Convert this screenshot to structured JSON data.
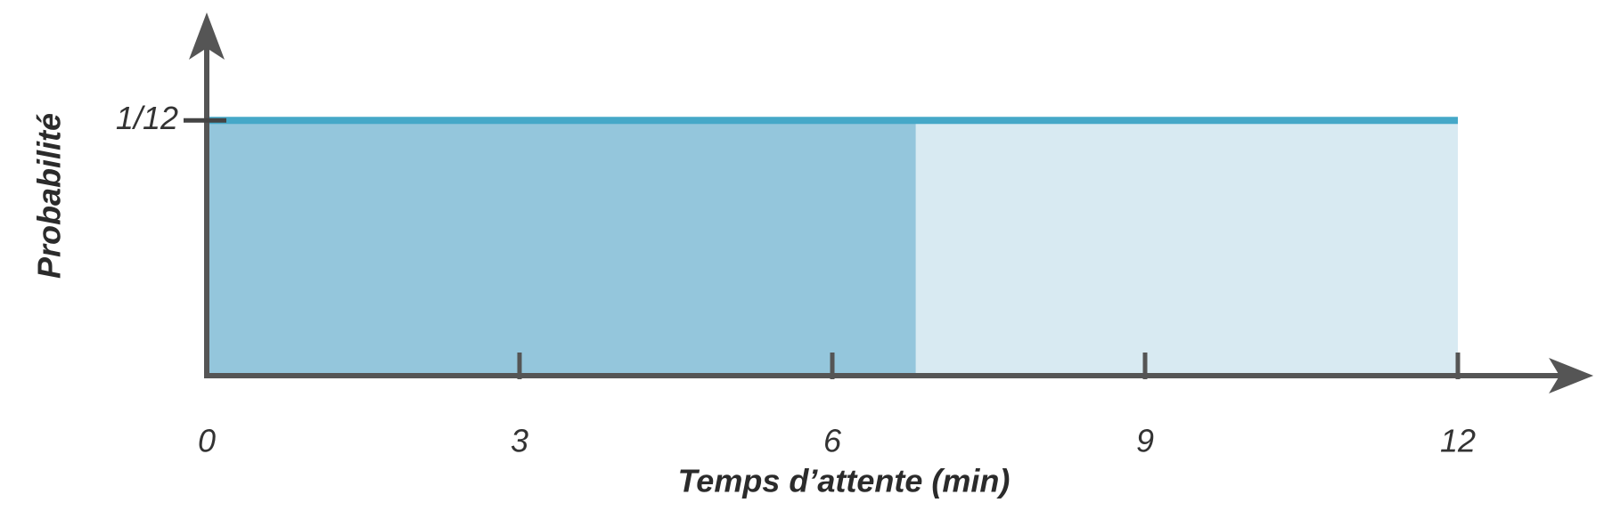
{
  "chart_data": {
    "type": "area",
    "x_label": "Temps d’attente (min)",
    "y_label": "Probabilité",
    "x": [
      0,
      12
    ],
    "values": [
      0.0833,
      0.0833
    ],
    "line_color": "#45a8c8",
    "fill_color": "#d8eaf2",
    "highlight": {
      "x": [
        0,
        6.8
      ],
      "color": "#94c6dc"
    },
    "xlim": [
      0,
      13.3
    ],
    "ylim": [
      0,
      0.12
    ],
    "xticks": [
      0,
      3,
      6,
      9,
      12
    ],
    "yticks": [
      {
        "value": 0.0833,
        "label": "1/12"
      }
    ]
  }
}
